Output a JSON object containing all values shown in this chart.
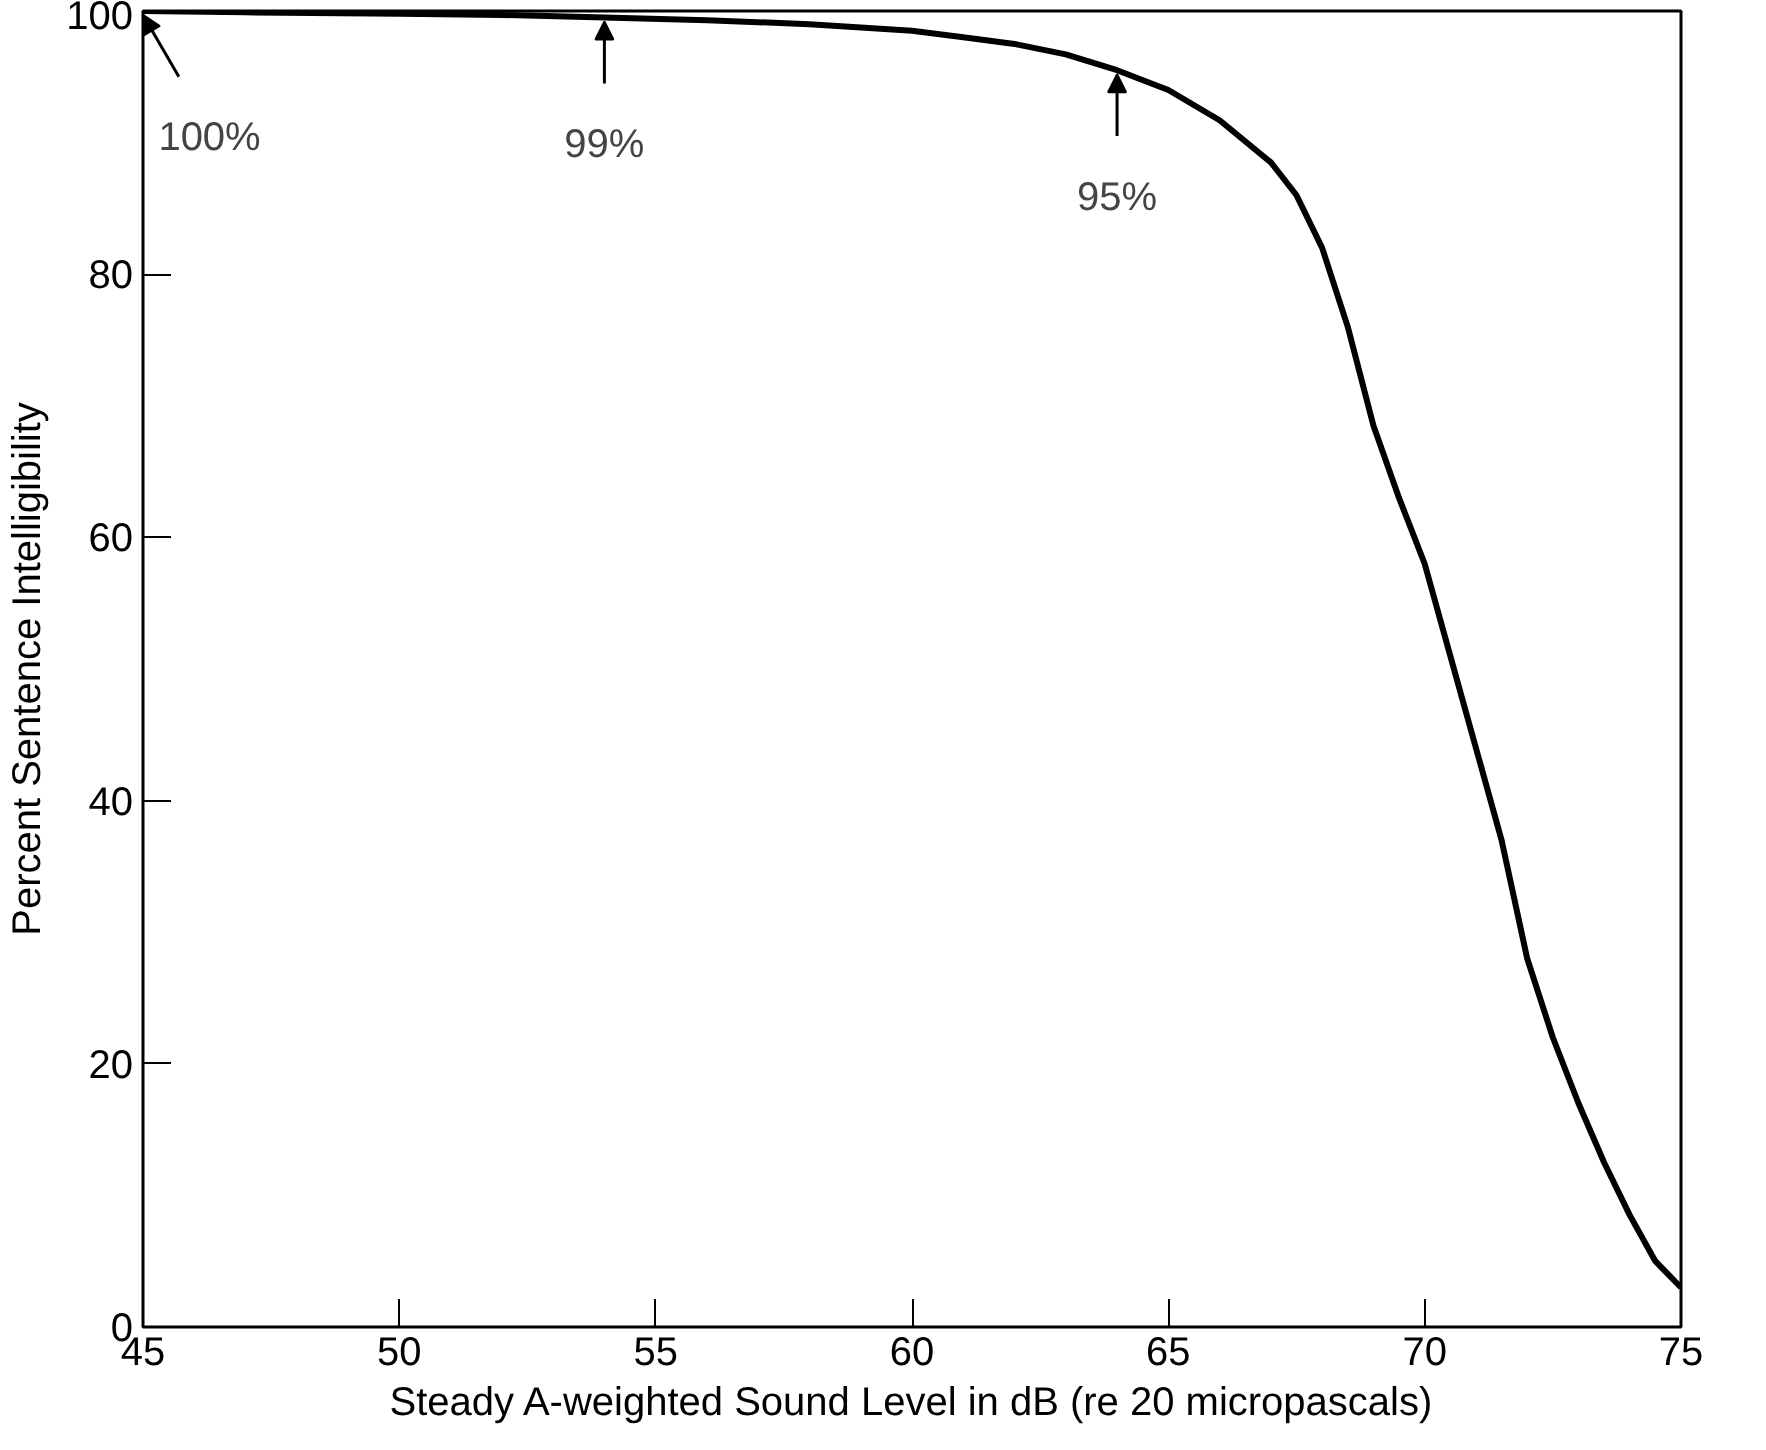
{
  "chart_data": {
    "type": "line",
    "xlabel": "Steady A-weighted Sound Level in dB (re 20 micropascals)",
    "ylabel": "Percent Sentence Intelligibility",
    "x": [
      45,
      47,
      50,
      52,
      54,
      56,
      58,
      60,
      61,
      62,
      63,
      64,
      65,
      66,
      67,
      67.5,
      68,
      68.5,
      69,
      69.5,
      70,
      70.5,
      71,
      71.5,
      72,
      72.5,
      73,
      73.5,
      74,
      74.5,
      75
    ],
    "values": [
      100,
      99.9,
      99.8,
      99.7,
      99.5,
      99.3,
      99,
      98.5,
      98,
      97.5,
      96.7,
      95.5,
      94,
      91.7,
      88.5,
      86,
      82,
      76,
      68.5,
      63,
      58,
      51,
      44,
      37,
      28,
      22,
      17,
      12.5,
      8.5,
      5,
      3
    ],
    "color": "#000000",
    "xlim": [
      45,
      75
    ],
    "ylim": [
      0,
      100
    ],
    "xticks": [
      45,
      50,
      55,
      60,
      65,
      70,
      75
    ],
    "yticks": [
      0,
      20,
      40,
      60,
      80,
      100
    ],
    "grid": false,
    "marker": "none",
    "line_style": "solid",
    "annotations": [
      {
        "text": "100%",
        "x": 45,
        "y": 100
      },
      {
        "text": "99%",
        "x": 54,
        "y": 99.5
      },
      {
        "text": "95%",
        "x": 64,
        "y": 95.5
      }
    ]
  }
}
